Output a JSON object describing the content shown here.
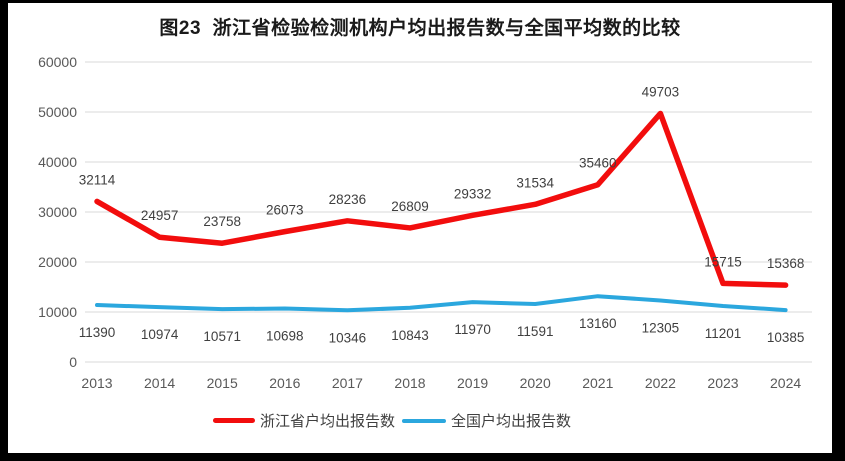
{
  "chart_data": {
    "type": "line",
    "title": "图23  浙江省检验检测机构户均出报告数与全国平均数的比较",
    "categories": [
      "2013",
      "2014",
      "2015",
      "2016",
      "2017",
      "2018",
      "2019",
      "2020",
      "2021",
      "2022",
      "2023",
      "2024"
    ],
    "series": [
      {
        "name": "浙江省户均出报告数",
        "color": "#f20d0d",
        "label_position": "above",
        "values": [
          32114,
          24957,
          23758,
          26073,
          28236,
          26809,
          29332,
          31534,
          35460,
          49703,
          15715,
          15368
        ]
      },
      {
        "name": "全国户均出报告数",
        "color": "#2ba7de",
        "label_position": "below",
        "values": [
          11390,
          10974,
          10571,
          10698,
          10346,
          10843,
          11970,
          11591,
          13160,
          12305,
          11201,
          10385
        ]
      }
    ],
    "xlabel": "",
    "ylabel": "",
    "ylim": [
      0,
      60000
    ],
    "ytick_step": 10000,
    "grid": true,
    "legend_position": "bottom"
  },
  "colors": {
    "grid": "#d9d9d9",
    "axis_text": "#595959",
    "data_label": "#3f3f3f",
    "title_text": "#1a1a1a",
    "frame": "#000000",
    "background": "#ffffff"
  }
}
